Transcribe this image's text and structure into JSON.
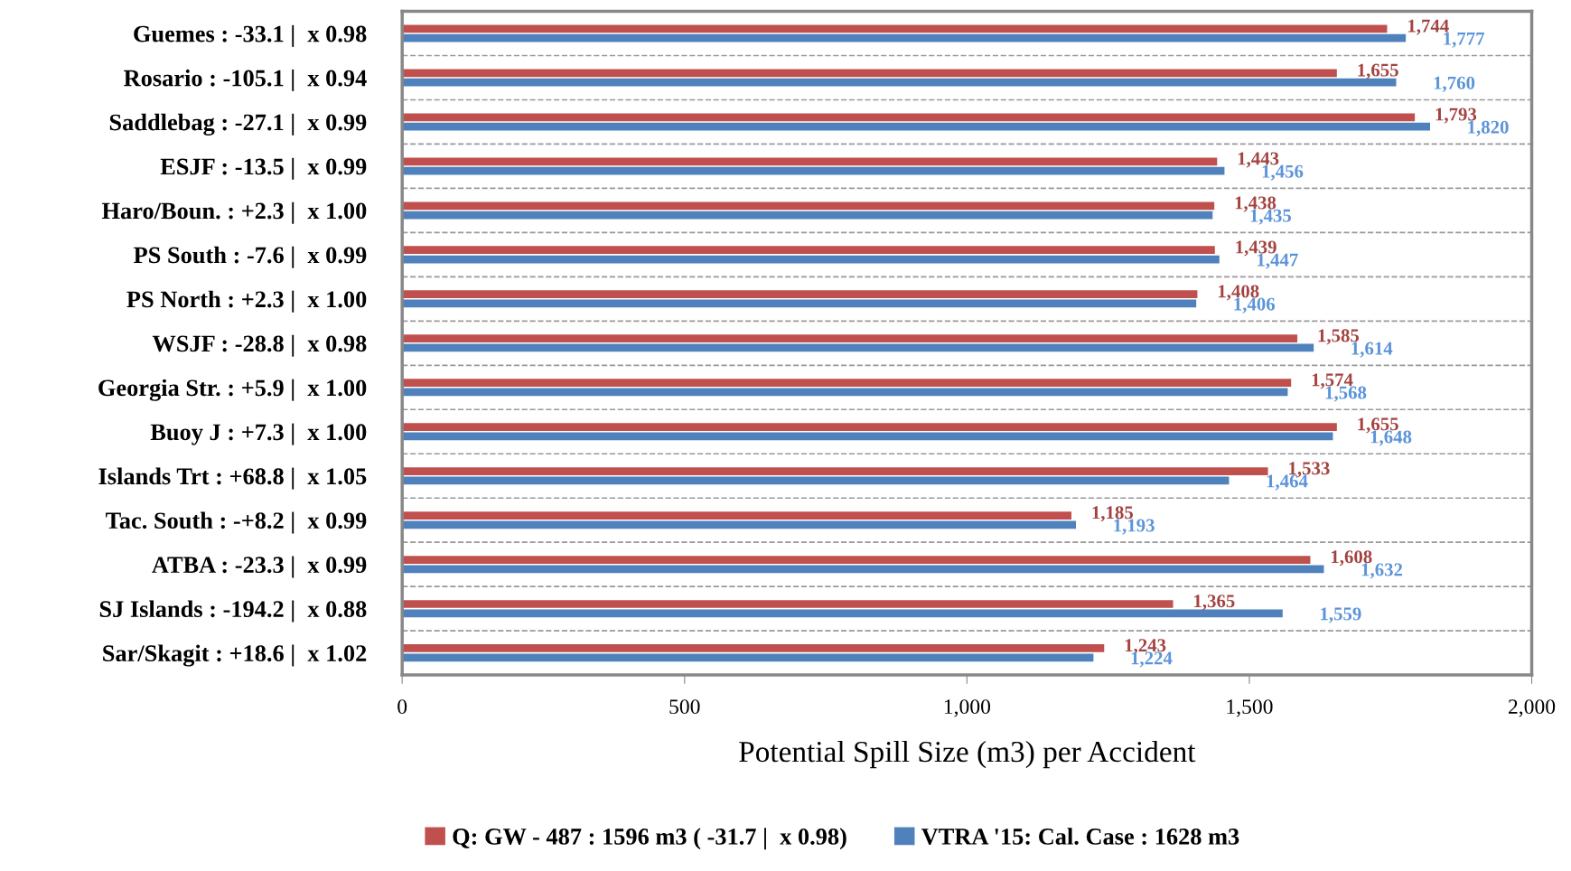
{
  "chart_data": {
    "type": "bar",
    "orientation": "horizontal",
    "xlabel": "Potential Spill Size (m3) per Accident",
    "categories": [
      "Guemes : -33.1 |  x 0.98",
      "Rosario : -105.1 |  x 0.94",
      "Saddlebag : -27.1 |  x 0.99",
      "ESJF : -13.5 |  x 0.99",
      "Haro/Boun. : +2.3 |  x 1.00",
      "PS South : -7.6 |  x 0.99",
      "PS North : +2.3 |  x 1.00",
      "WSJF : -28.8 |  x 0.98",
      "Georgia Str. : +5.9 |  x 1.00",
      "Buoy J : +7.3 |  x 1.00",
      "Islands Trt : +68.8 |  x 1.05",
      "Tac. South : -+8.2 |  x 0.99",
      "ATBA : -23.3 |  x 0.99",
      "SJ Islands : -194.2 |  x 0.88",
      "Sar/Skagit : +18.6 |  x 1.02"
    ],
    "series": [
      {
        "name": "Q: GW - 487 : 1596 m3 ( -31.7 |  x 0.98)",
        "color": "#c0504d",
        "values": [
          1744,
          1655,
          1793,
          1443,
          1438,
          1439,
          1408,
          1585,
          1574,
          1655,
          1533,
          1185,
          1608,
          1365,
          1243
        ],
        "value_labels": [
          "1,744",
          "1,655",
          "1,793",
          "1,443",
          "1,438",
          "1,439",
          "1,408",
          "1,585",
          "1,574",
          "1,655",
          "1,533",
          "1,185",
          "1,608",
          "1,365",
          "1,243"
        ]
      },
      {
        "name": "VTRA '15: Cal. Case : 1628 m3",
        "color": "#4f81bd",
        "values": [
          1777,
          1760,
          1820,
          1456,
          1435,
          1447,
          1406,
          1614,
          1568,
          1648,
          1464,
          1193,
          1632,
          1559,
          1224
        ],
        "value_labels": [
          "1,777",
          "1,760",
          "1,820",
          "1,456",
          "1,435",
          "1,447",
          "1,406",
          "1,614",
          "1,568",
          "1,648",
          "1,464",
          "1,193",
          "1,632",
          "1,559",
          "1,224"
        ]
      }
    ],
    "xlim": [
      0,
      2000
    ],
    "xticks": [
      0,
      500,
      {
        "value": 1000,
        "label": "1,000"
      },
      {
        "value": 1500,
        "label": "1,500"
      },
      {
        "value": 2000,
        "label": "2,000"
      }
    ],
    "legend": "bottom",
    "grid": false
  }
}
